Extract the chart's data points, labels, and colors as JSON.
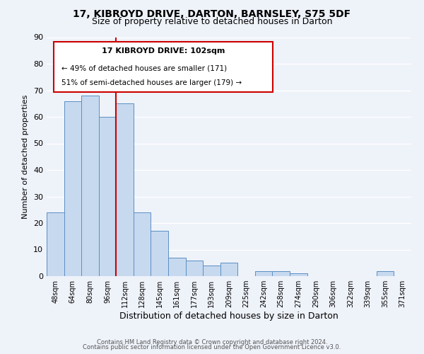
{
  "title": "17, KIBROYD DRIVE, DARTON, BARNSLEY, S75 5DF",
  "subtitle": "Size of property relative to detached houses in Darton",
  "xlabel": "Distribution of detached houses by size in Darton",
  "ylabel": "Number of detached properties",
  "bin_labels": [
    "48sqm",
    "64sqm",
    "80sqm",
    "96sqm",
    "112sqm",
    "128sqm",
    "145sqm",
    "161sqm",
    "177sqm",
    "193sqm",
    "209sqm",
    "225sqm",
    "242sqm",
    "258sqm",
    "274sqm",
    "290sqm",
    "306sqm",
    "322sqm",
    "339sqm",
    "355sqm",
    "371sqm"
  ],
  "bin_values": [
    24,
    66,
    68,
    60,
    65,
    24,
    17,
    7,
    6,
    4,
    5,
    0,
    2,
    2,
    1,
    0,
    0,
    0,
    0,
    2,
    0
  ],
  "bar_color": "#c7d9ef",
  "bar_edge_color": "#5b8fc4",
  "vline_color": "#cc0000",
  "annotation_title": "17 KIBROYD DRIVE: 102sqm",
  "annotation_line2": "← 49% of detached houses are smaller (171)",
  "annotation_line3": "51% of semi-detached houses are larger (179) →",
  "annotation_box_color": "#cc0000",
  "ylim": [
    0,
    90
  ],
  "yticks": [
    0,
    10,
    20,
    30,
    40,
    50,
    60,
    70,
    80,
    90
  ],
  "footer_line1": "Contains HM Land Registry data © Crown copyright and database right 2024.",
  "footer_line2": "Contains public sector information licensed under the Open Government Licence v3.0.",
  "bg_color": "#eef2f9",
  "grid_color": "#ffffff",
  "title_fontsize": 10,
  "subtitle_fontsize": 9
}
